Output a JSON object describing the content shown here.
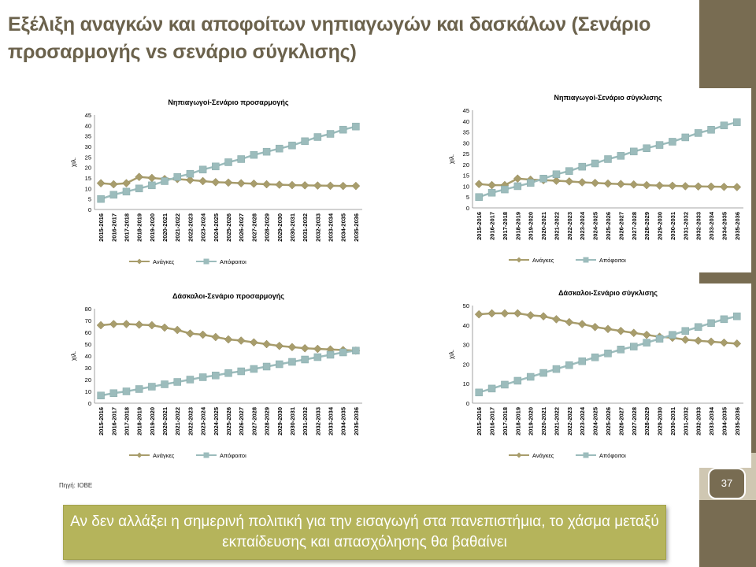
{
  "title": "Εξέλιξη αναγκών και αποφοίτων νηπιαγωγών και δασκάλων (Σενάριο προσαρμογής vs σενάριο σύγκλισης)",
  "source": "Πηγή: ΙΟΒΕ",
  "page_number": "37",
  "callout": "Αν δεν αλλάξει η σημερινή πολιτική για την εισαγωγή στα πανεπιστήμια, το χάσμα μεταξύ εκπαίδευσης και απασχόλησης θα βαθαίνει",
  "colors": {
    "needs": "#a89d6c",
    "graduates": "#9cbcbc",
    "sidebar": "#786c52",
    "callout": "#b5b45b"
  },
  "chart_data": [
    {
      "type": "line",
      "title": "Νηπιαγωγοί-Σενάριο προσαρμογής",
      "ylabel": "χιλ.",
      "ylim": [
        0,
        45
      ],
      "yticks": [
        0,
        5,
        10,
        15,
        20,
        25,
        30,
        35,
        40,
        45
      ],
      "legend_position": "bottom",
      "categories": [
        "2015-2016",
        "2016-2017",
        "2017-2018",
        "2018-2019",
        "2019-2020",
        "2020-2021",
        "2021-2022",
        "2022-2023",
        "2023-2024",
        "2024-2025",
        "2025-2026",
        "2026-2027",
        "2027-2028",
        "2028-2029",
        "2029-2030",
        "2030-2031",
        "2031-2032",
        "2032-2033",
        "2033-2034",
        "2034-2035",
        "2035-2036"
      ],
      "series": [
        {
          "name": "Ανάγκες",
          "values": [
            12.5,
            12,
            12.5,
            15.5,
            15,
            14.5,
            14.5,
            14,
            13.5,
            13,
            12.8,
            12.5,
            12.3,
            12,
            11.8,
            11.6,
            11.5,
            11.4,
            11.3,
            11.2,
            11.2
          ]
        },
        {
          "name": "Απόφοιτοι",
          "values": [
            5,
            7,
            8.5,
            10,
            11.5,
            13.5,
            15.5,
            17,
            19,
            20.5,
            22.5,
            24,
            26,
            27.5,
            29,
            30.5,
            32.5,
            34.5,
            36,
            38,
            39.5
          ]
        }
      ]
    },
    {
      "type": "line",
      "title": "Νηπιαγωγοί-Σενάριο σύγκλισης",
      "ylabel": "χιλ.",
      "ylim": [
        0,
        45
      ],
      "yticks": [
        0,
        5,
        10,
        15,
        20,
        25,
        30,
        35,
        40,
        45
      ],
      "legend_position": "bottom",
      "categories": [
        "2015-2016",
        "2016-2017",
        "2017-2018",
        "2018-2019",
        "2019-2020",
        "2020-2021",
        "2021-2022",
        "2022-2023",
        "2023-2024",
        "2024-2025",
        "2025-2026",
        "2026-2027",
        "2027-2028",
        "2028-2029",
        "2029-2030",
        "2030-2031",
        "2031-2032",
        "2032-2033",
        "2033-2034",
        "2034-2035",
        "2035-2036"
      ],
      "series": [
        {
          "name": "Ανάγκες",
          "values": [
            11,
            10.5,
            10.5,
            13.5,
            13,
            12.8,
            12.5,
            12.2,
            11.8,
            11.5,
            11.2,
            11,
            10.8,
            10.5,
            10.3,
            10.2,
            10,
            9.9,
            9.8,
            9.7,
            9.6
          ]
        },
        {
          "name": "Απόφοιτοι",
          "values": [
            5,
            7,
            8.5,
            10,
            11.5,
            13.5,
            15.5,
            17,
            19,
            20.5,
            22.5,
            24,
            26,
            27.5,
            29,
            30.5,
            32.5,
            34.5,
            36,
            38,
            39.5
          ]
        }
      ]
    },
    {
      "type": "line",
      "title": "Δάσκαλοι-Σενάριο προσαρμογής",
      "ylabel": "χιλ.",
      "ylim": [
        0,
        80
      ],
      "yticks": [
        0,
        10,
        20,
        30,
        40,
        50,
        60,
        70,
        80
      ],
      "legend_position": "bottom",
      "categories": [
        "2015-2016",
        "2016-2017",
        "2017-2018",
        "2018-2019",
        "2019-2020",
        "2020-2021",
        "2021-2022",
        "2022-2023",
        "2023-2024",
        "2024-2025",
        "2025-2026",
        "2026-2027",
        "2027-2028",
        "2028-2029",
        "2029-2030",
        "2030-2031",
        "2031-2032",
        "2032-2033",
        "2033-2034",
        "2034-2035",
        "2035-2036"
      ],
      "series": [
        {
          "name": "Ανάγκες",
          "values": [
            66,
            67,
            67,
            66.5,
            66,
            64,
            62,
            59,
            58,
            56,
            54,
            53,
            51.5,
            50,
            48.5,
            47.5,
            46.5,
            46,
            45.5,
            45,
            44.5
          ]
        },
        {
          "name": "Απόφοιτοι",
          "values": [
            6.5,
            8.5,
            10,
            12,
            14,
            16,
            18,
            20,
            22,
            23.5,
            25.5,
            27,
            29,
            31,
            33,
            35,
            37,
            39,
            41,
            43,
            44.5
          ]
        }
      ]
    },
    {
      "type": "line",
      "title": "Δάσκαλοι-Σενάριο σύγκλισης",
      "ylabel": "χιλ.",
      "ylim": [
        0,
        50
      ],
      "yticks": [
        0,
        10,
        20,
        30,
        40,
        50
      ],
      "legend_position": "bottom",
      "categories": [
        "2015-2016",
        "2016-2017",
        "2017-2018",
        "2018-2019",
        "2019-2020",
        "2020-2021",
        "2021-2022",
        "2022-2023",
        "2023-2024",
        "2024-2025",
        "2025-2026",
        "2026-2027",
        "2027-2028",
        "2028-2029",
        "2029-2030",
        "2030-2031",
        "2031-2032",
        "2032-2033",
        "2033-2034",
        "2034-2035",
        "2035-2036"
      ],
      "series": [
        {
          "name": "Ανάγκες",
          "values": [
            45.5,
            46,
            46,
            46,
            45,
            44.5,
            43,
            41.5,
            40.5,
            39,
            38,
            37,
            36,
            35,
            34,
            33.5,
            32.5,
            32,
            31.5,
            31,
            30.5
          ]
        },
        {
          "name": "Απόφοιτοι",
          "values": [
            5.5,
            7.5,
            9.5,
            11.5,
            13.5,
            15.5,
            17.5,
            19.5,
            21.5,
            23.5,
            25.5,
            27.5,
            29,
            31,
            33,
            35,
            37,
            39,
            41,
            43,
            44.5
          ]
        }
      ]
    }
  ]
}
